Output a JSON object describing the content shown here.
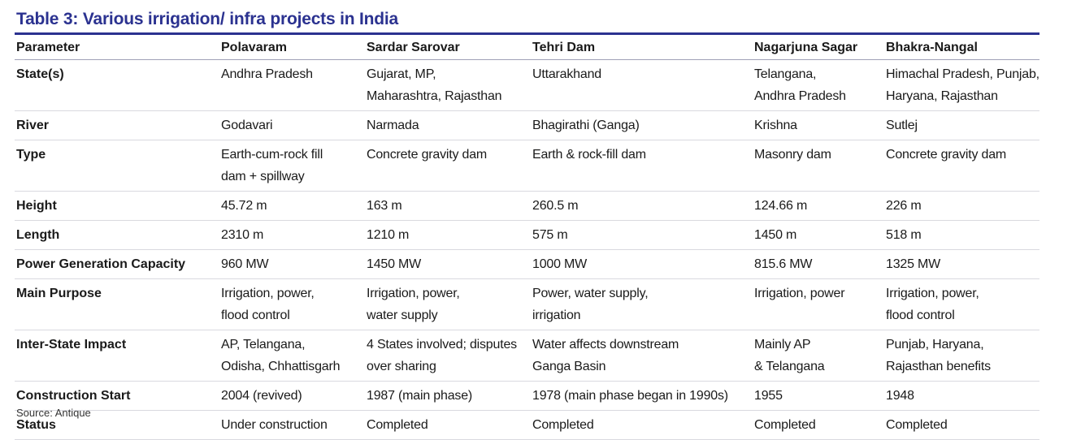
{
  "title": "Table 3: Various irrigation/ infra projects in India",
  "headers": [
    "Parameter",
    "Polavaram",
    "Sardar Sarovar",
    "Tehri Dam",
    "Nagarjuna Sagar",
    "Bhakra-Nangal"
  ],
  "rows": [
    {
      "param": "State(s)",
      "cells": [
        [
          "Andhra Pradesh"
        ],
        [
          "Gujarat, MP,",
          "Maharashtra, Rajasthan"
        ],
        [
          "Uttarakhand"
        ],
        [
          "Telangana,",
          "Andhra Pradesh"
        ],
        [
          "Himachal Pradesh, Punjab,",
          "Haryana, Rajasthan"
        ]
      ]
    },
    {
      "param": "River",
      "cells": [
        [
          "Godavari"
        ],
        [
          "Narmada"
        ],
        [
          "Bhagirathi (Ganga)"
        ],
        [
          "Krishna"
        ],
        [
          "Sutlej"
        ]
      ]
    },
    {
      "param": "Type",
      "cells": [
        [
          "Earth-cum-rock fill",
          "dam + spillway"
        ],
        [
          "Concrete gravity dam"
        ],
        [
          "Earth & rock-fill dam"
        ],
        [
          "Masonry dam"
        ],
        [
          "Concrete gravity dam"
        ]
      ]
    },
    {
      "param": "Height",
      "cells": [
        [
          "45.72 m"
        ],
        [
          "163 m"
        ],
        [
          "260.5 m"
        ],
        [
          "124.66 m"
        ],
        [
          "226 m"
        ]
      ]
    },
    {
      "param": "Length",
      "cells": [
        [
          "2310 m"
        ],
        [
          "1210 m"
        ],
        [
          "575 m"
        ],
        [
          "1450 m"
        ],
        [
          "518 m"
        ]
      ]
    },
    {
      "param": "Power Generation Capacity",
      "cells": [
        [
          "960 MW"
        ],
        [
          "1450 MW"
        ],
        [
          "1000 MW"
        ],
        [
          "815.6 MW"
        ],
        [
          "1325 MW"
        ]
      ]
    },
    {
      "param": "Main Purpose",
      "cells": [
        [
          "Irrigation, power,",
          "flood control"
        ],
        [
          "Irrigation, power,",
          "water supply"
        ],
        [
          "Power, water supply,",
          "irrigation"
        ],
        [
          "Irrigation, power"
        ],
        [
          "Irrigation, power,",
          "flood control"
        ]
      ]
    },
    {
      "param": "Inter-State Impact",
      "cells": [
        [
          "AP, Telangana,",
          "Odisha, Chhattisgarh"
        ],
        [
          "4 States involved; disputes",
          "over sharing"
        ],
        [
          "Water affects downstream",
          "Ganga Basin"
        ],
        [
          "Mainly AP",
          "& Telangana"
        ],
        [
          "Punjab, Haryana,",
          "Rajasthan benefits"
        ]
      ]
    },
    {
      "param": "Construction Start",
      "cells": [
        [
          "2004 (revived)"
        ],
        [
          "1987 (main phase)"
        ],
        [
          "1978 (main phase began in 1990s)"
        ],
        [
          "1955"
        ],
        [
          "1948"
        ]
      ]
    },
    {
      "param": "Status",
      "cells": [
        [
          "Under construction"
        ],
        [
          "Completed"
        ],
        [
          "Completed"
        ],
        [
          "Completed"
        ],
        [
          "Completed"
        ]
      ]
    }
  ],
  "source": "Source: Antique"
}
